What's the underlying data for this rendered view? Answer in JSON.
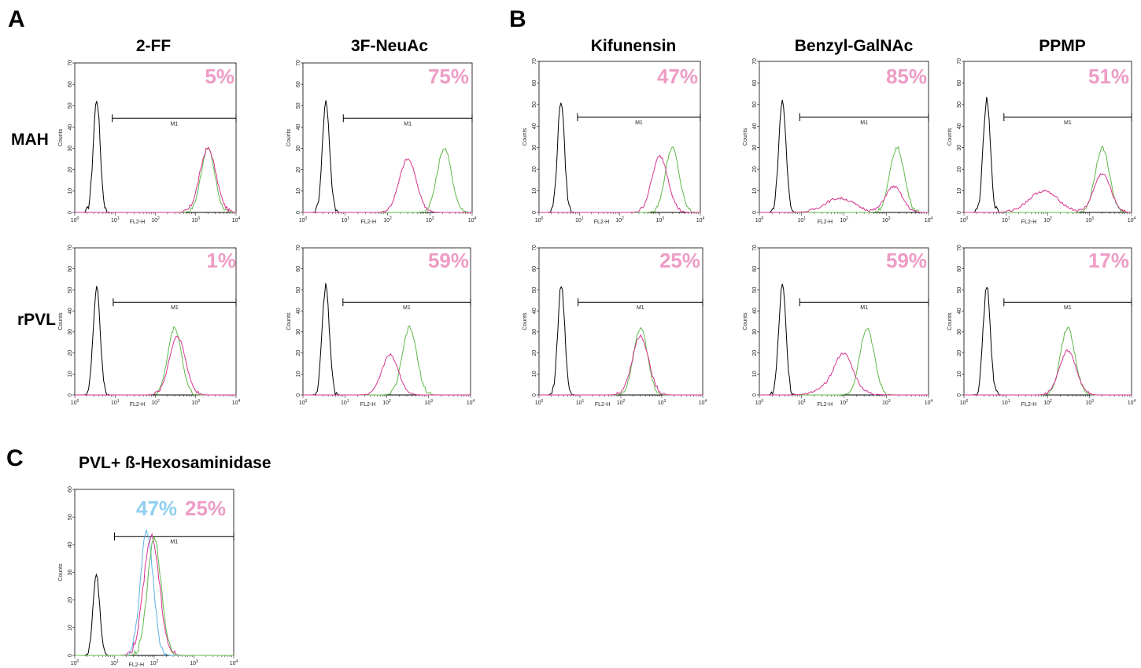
{
  "colors": {
    "black": "#000000",
    "magenta": "#d6338f",
    "green": "#5fb848",
    "blue": "#5ab2e6",
    "pink_text": "#ee9cc6",
    "blue_text": "#8fd0f0"
  },
  "panel_letters": {
    "a": "A",
    "b": "B",
    "c": "C"
  },
  "row_labels": {
    "mah": "MAH",
    "rpvl": "rPVL"
  },
  "col_titles": {
    "c0": "2-FF",
    "c1": "3F-NeuAc",
    "c2": "Kifunensin",
    "c3": "Benzyl-GalNAc",
    "c4": "PPMP",
    "c5": "PVL+ ß-Hexosaminidase"
  },
  "axes": {
    "ylabel": "Counts",
    "xlabel": "FL2-H",
    "marker_label": "M1",
    "x_scale": "log",
    "xlim": [
      1,
      10000
    ],
    "ylim": [
      0,
      70
    ],
    "y_ticks": [
      "0",
      "10",
      "20",
      "30",
      "40",
      "50",
      "60",
      "70"
    ],
    "y_ticks_c": [
      "0",
      "10",
      "20",
      "30",
      "40",
      "50",
      "60"
    ]
  },
  "chart_data": [
    {
      "type": "histogram",
      "id": "p00",
      "row": "MAH",
      "column": "2-FF",
      "annotations": [
        "5%"
      ],
      "ylim": [
        0,
        70
      ],
      "marker_M1": [
        8.5,
        10000
      ],
      "series": [
        {
          "color": "black",
          "peak_x": 3.5,
          "peak_y": 53
        },
        {
          "color": "green",
          "peak_x": 2000,
          "peak_y": 30
        },
        {
          "color": "magenta",
          "peak_x": 2000,
          "peak_y": 30
        }
      ]
    },
    {
      "type": "histogram",
      "id": "p01",
      "row": "MAH",
      "column": "3F-NeuAc",
      "annotations": [
        "75%"
      ],
      "ylim": [
        0,
        70
      ],
      "marker_M1": [
        9,
        10000
      ],
      "series": [
        {
          "color": "black",
          "peak_x": 3.5,
          "peak_y": 52
        },
        {
          "color": "green",
          "peak_x": 2200,
          "peak_y": 30
        },
        {
          "color": "magenta",
          "peak_x": 300,
          "peak_y": 25
        }
      ]
    },
    {
      "type": "histogram",
      "id": "p02",
      "row": "MAH",
      "column": "Kifunensin",
      "annotations": [
        "47%"
      ],
      "ylim": [
        0,
        70
      ],
      "marker_M1": [
        9,
        10000
      ],
      "series": [
        {
          "color": "black",
          "peak_x": 3.5,
          "peak_y": 52
        },
        {
          "color": "green",
          "peak_x": 2000,
          "peak_y": 30
        },
        {
          "color": "magenta",
          "peak_x": 1000,
          "peak_y": 26
        }
      ]
    },
    {
      "type": "histogram",
      "id": "p03",
      "row": "MAH",
      "column": "Benzyl-GalNAc",
      "annotations": [
        "85%"
      ],
      "ylim": [
        0,
        70
      ],
      "marker_M1": [
        9,
        10000
      ],
      "series": [
        {
          "color": "black",
          "peak_x": 3.5,
          "peak_y": 52
        },
        {
          "color": "green",
          "peak_x": 1800,
          "peak_y": 30
        },
        {
          "color": "magenta",
          "peak_x": 1500,
          "peak_y": 12
        }
      ]
    },
    {
      "type": "histogram",
      "id": "p04",
      "row": "MAH",
      "column": "PPMP",
      "annotations": [
        "51%"
      ],
      "ylim": [
        0,
        70
      ],
      "marker_M1": [
        9,
        10000
      ],
      "series": [
        {
          "color": "black",
          "peak_x": 3.5,
          "peak_y": 52
        },
        {
          "color": "green",
          "peak_x": 2000,
          "peak_y": 30
        },
        {
          "color": "magenta",
          "peak_x": 2000,
          "peak_y": 18
        }
      ]
    },
    {
      "type": "histogram",
      "id": "p10",
      "row": "rPVL",
      "column": "2-FF",
      "annotations": [
        "1%"
      ],
      "ylim": [
        0,
        70
      ],
      "marker_M1": [
        9,
        10000
      ],
      "series": [
        {
          "color": "black",
          "peak_x": 3.5,
          "peak_y": 52
        },
        {
          "color": "green",
          "peak_x": 300,
          "peak_y": 32
        },
        {
          "color": "magenta",
          "peak_x": 350,
          "peak_y": 28
        }
      ]
    },
    {
      "type": "histogram",
      "id": "p11",
      "row": "rPVL",
      "column": "3F-NeuAc",
      "annotations": [
        "59%"
      ],
      "ylim": [
        0,
        70
      ],
      "marker_M1": [
        9,
        10000
      ],
      "series": [
        {
          "color": "black",
          "peak_x": 3.5,
          "peak_y": 52
        },
        {
          "color": "green",
          "peak_x": 350,
          "peak_y": 32
        },
        {
          "color": "magenta",
          "peak_x": 120,
          "peak_y": 19
        }
      ]
    },
    {
      "type": "histogram",
      "id": "p12",
      "row": "rPVL",
      "column": "Kifunensin",
      "annotations": [
        "25%"
      ],
      "ylim": [
        0,
        70
      ],
      "marker_M1": [
        9,
        10000
      ],
      "series": [
        {
          "color": "black",
          "peak_x": 3.5,
          "peak_y": 52
        },
        {
          "color": "green",
          "peak_x": 300,
          "peak_y": 32
        },
        {
          "color": "magenta",
          "peak_x": 300,
          "peak_y": 28
        }
      ]
    },
    {
      "type": "histogram",
      "id": "p13",
      "row": "rPVL",
      "column": "Benzyl-GalNAc",
      "annotations": [
        "59%"
      ],
      "ylim": [
        0,
        70
      ],
      "marker_M1": [
        9,
        10000
      ],
      "series": [
        {
          "color": "black",
          "peak_x": 3.5,
          "peak_y": 52
        },
        {
          "color": "green",
          "peak_x": 350,
          "peak_y": 32
        },
        {
          "color": "magenta",
          "peak_x": 100,
          "peak_y": 13
        }
      ]
    },
    {
      "type": "histogram",
      "id": "p14",
      "row": "rPVL",
      "column": "PPMP",
      "annotations": [
        "17%"
      ],
      "ylim": [
        0,
        70
      ],
      "marker_M1": [
        9,
        10000
      ],
      "series": [
        {
          "color": "black",
          "peak_x": 3.5,
          "peak_y": 52
        },
        {
          "color": "green",
          "peak_x": 300,
          "peak_y": 32
        },
        {
          "color": "magenta",
          "peak_x": 300,
          "peak_y": 21
        }
      ]
    },
    {
      "type": "histogram",
      "id": "pc",
      "row": "",
      "column": "PVL+ ß-Hexosaminidase",
      "annotations": [
        "47%",
        "25%"
      ],
      "ylim": [
        0,
        60
      ],
      "marker_M1": [
        10,
        10000
      ],
      "series": [
        {
          "color": "black",
          "peak_x": 3.5,
          "peak_y": 29
        },
        {
          "color": "blue",
          "peak_x": 65,
          "peak_y": 45
        },
        {
          "color": "magenta",
          "peak_x": 85,
          "peak_y": 43
        },
        {
          "color": "green",
          "peak_x": 100,
          "peak_y": 43
        }
      ]
    }
  ]
}
